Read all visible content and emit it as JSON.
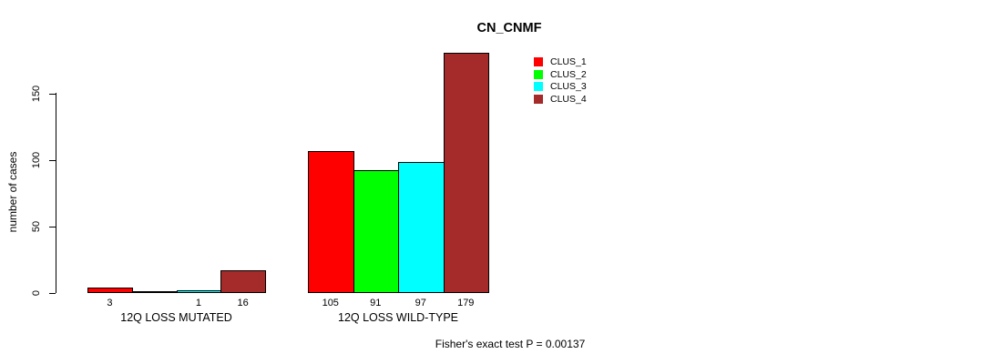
{
  "chart_data": {
    "type": "bar",
    "title": "CN_CNMF",
    "ylabel": "number of cases",
    "yticks": [
      0,
      50,
      100,
      150
    ],
    "ylim": [
      0,
      185
    ],
    "grid": false,
    "legend_position": "top-right",
    "categories": [
      "12Q LOSS MUTATED",
      "12Q LOSS WILD-TYPE"
    ],
    "series": [
      {
        "name": "CLUS_1",
        "color": "#ff0000",
        "values": [
          3,
          105
        ]
      },
      {
        "name": "CLUS_2",
        "color": "#00ff00",
        "values": [
          0,
          91
        ]
      },
      {
        "name": "CLUS_3",
        "color": "#00ffff",
        "values": [
          1,
          97
        ]
      },
      {
        "name": "CLUS_4",
        "color": "#a52a2a",
        "values": [
          16,
          179
        ]
      }
    ],
    "bar_labels": [
      [
        "3",
        "",
        "1",
        "16"
      ],
      [
        "105",
        "91",
        "97",
        "179"
      ]
    ],
    "annotation": "Fisher's exact test P = 0.00137"
  }
}
